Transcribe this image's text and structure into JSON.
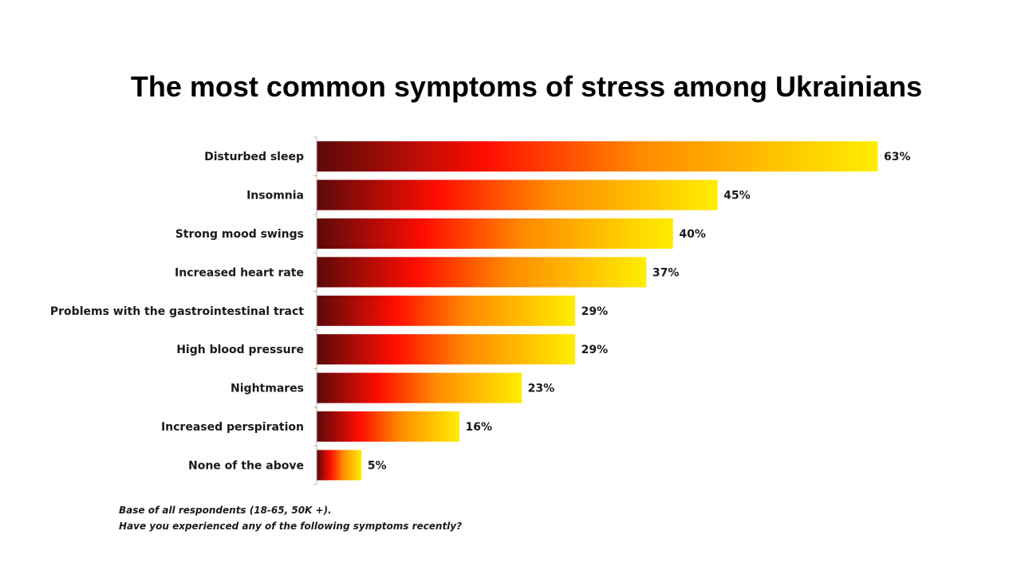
{
  "chart_data": {
    "type": "bar",
    "orientation": "horizontal",
    "title": "The most common symptoms of stress among Ukrainians",
    "categories": [
      "Disturbed sleep",
      "Insomnia",
      "Strong mood swings",
      "Increased heart rate",
      "Problems with the gastrointestinal tract",
      "High blood pressure",
      "Nightmares",
      "Increased perspiration",
      "None of the above"
    ],
    "values": [
      63,
      45,
      40,
      37,
      29,
      29,
      23,
      16,
      5
    ],
    "value_labels": [
      "63%",
      "45%",
      "40%",
      "37%",
      "29%",
      "29%",
      "23%",
      "16%",
      "5%"
    ],
    "unit": "%",
    "xlim": [
      0,
      63
    ],
    "grid": false,
    "legend": "none",
    "bar_gradient": [
      "#5c0a0a",
      "#ff0d00",
      "#ff8a00",
      "#ffee00"
    ]
  },
  "footnotes": [
    "Base of all respondents (18-65, 50K +).",
    "Have you experienced any of the following symptoms recently?"
  ]
}
